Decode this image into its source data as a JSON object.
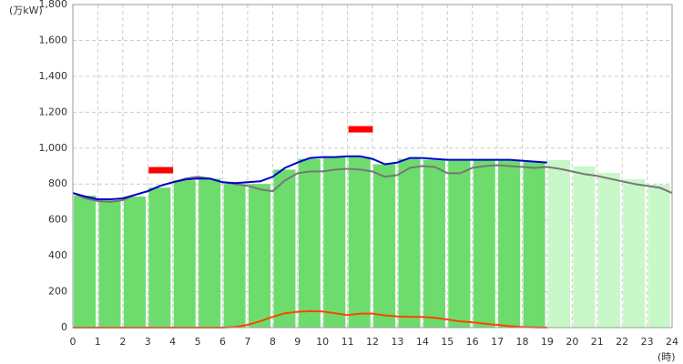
{
  "chart_data": {
    "type": "combo",
    "y_label": "(万kW)",
    "x_label": "(時)",
    "xlim": [
      0,
      24
    ],
    "xticks": [
      0,
      1,
      2,
      3,
      4,
      5,
      6,
      7,
      8,
      9,
      10,
      11,
      12,
      13,
      14,
      15,
      16,
      17,
      18,
      19,
      20,
      21,
      22,
      23,
      24
    ],
    "ylim": [
      0,
      1800
    ],
    "yticks": [
      0,
      200,
      400,
      600,
      800,
      {
        "value": 1000,
        "label": "1,000"
      },
      {
        "value": 1200,
        "label": "1,200"
      },
      {
        "value": 1400,
        "label": "1,400"
      },
      {
        "value": 1600,
        "label": "1,600"
      },
      {
        "value": 1800,
        "label": "1,800"
      }
    ],
    "grid": true,
    "series": [
      {
        "type": "bar",
        "color": "#6ddc6d",
        "x": [
          0,
          1,
          2,
          3,
          4,
          5,
          6,
          7,
          8,
          9,
          10,
          11,
          12,
          13,
          14,
          15,
          16,
          17,
          18
        ],
        "values": [
          735,
          710,
          730,
          780,
          820,
          830,
          800,
          800,
          880,
          940,
          950,
          950,
          910,
          940,
          935,
          930,
          940,
          930,
          925
        ]
      },
      {
        "type": "bar",
        "color": "#c8f7c8",
        "x": [
          19,
          20,
          21,
          22,
          23
        ],
        "values": [
          933,
          898,
          862,
          827,
          796
        ]
      },
      {
        "type": "marker",
        "color": "#ff0000",
        "x": [
          3,
          11
        ],
        "values": [
          877,
          1105
        ]
      },
      {
        "type": "line",
        "color": "#777777",
        "x": [
          0,
          0.5,
          1,
          1.5,
          2,
          2.5,
          3,
          3.5,
          4,
          4.5,
          5,
          5.5,
          6,
          6.5,
          7,
          7.5,
          8,
          8.5,
          9,
          9.5,
          10,
          10.5,
          11,
          11.5,
          12,
          12.5,
          13,
          13.5,
          14,
          14.5,
          15,
          15.5,
          16,
          16.5,
          17,
          17.5,
          18,
          18.5,
          19,
          19.5,
          20,
          20.5,
          21,
          21.5,
          22,
          22.5,
          23,
          23.5,
          24
        ],
        "values": [
          750,
          720,
          705,
          700,
          710,
          740,
          760,
          790,
          810,
          830,
          840,
          830,
          810,
          800,
          790,
          770,
          760,
          820,
          860,
          870,
          870,
          880,
          885,
          880,
          870,
          840,
          850,
          890,
          900,
          895,
          860,
          860,
          890,
          900,
          905,
          900,
          895,
          890,
          895,
          885,
          870,
          855,
          845,
          830,
          815,
          800,
          790,
          780,
          750
        ]
      },
      {
        "type": "line",
        "color": "#0000cc",
        "x": [
          0,
          0.5,
          1,
          1.5,
          2,
          2.5,
          3,
          3.5,
          4,
          4.5,
          5,
          5.5,
          6,
          6.5,
          7,
          7.5,
          8,
          8.5,
          9,
          9.5,
          10,
          10.5,
          11,
          11.5,
          12,
          12.5,
          13,
          13.5,
          14,
          14.5,
          15,
          15.5,
          16,
          16.5,
          17,
          17.5,
          18,
          18.5,
          19
        ],
        "values": [
          750,
          730,
          715,
          715,
          720,
          740,
          760,
          790,
          810,
          825,
          830,
          830,
          810,
          805,
          810,
          815,
          840,
          890,
          920,
          945,
          950,
          950,
          955,
          955,
          940,
          910,
          920,
          945,
          945,
          940,
          935,
          935,
          935,
          935,
          935,
          935,
          930,
          925,
          920
        ]
      },
      {
        "type": "line",
        "color": "#ff4400",
        "x": [
          0,
          0.5,
          1,
          1.5,
          2,
          2.5,
          3,
          3.5,
          4,
          4.5,
          5,
          5.5,
          6,
          6.5,
          7,
          7.5,
          8,
          8.5,
          9,
          9.5,
          10,
          10.5,
          11,
          11.5,
          12,
          12.5,
          13,
          13.5,
          14,
          14.5,
          15,
          15.5,
          16,
          16.5,
          17,
          17.5,
          18,
          18.5,
          19
        ],
        "values": [
          0,
          0,
          0,
          0,
          0,
          0,
          0,
          0,
          0,
          0,
          0,
          0,
          0,
          3,
          15,
          35,
          60,
          80,
          88,
          92,
          90,
          80,
          70,
          78,
          78,
          68,
          62,
          60,
          60,
          55,
          45,
          35,
          30,
          22,
          15,
          8,
          3,
          1,
          0
        ]
      }
    ]
  }
}
